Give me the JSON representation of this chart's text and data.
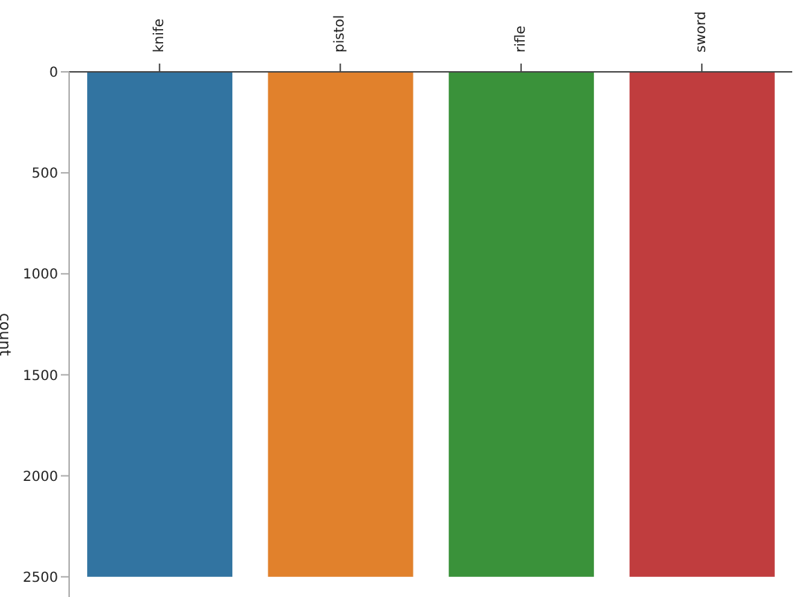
{
  "chart_data": {
    "type": "bar",
    "categories": [
      "knife",
      "pistol",
      "rifle",
      "sword"
    ],
    "values": [
      2500,
      2500,
      2500,
      2500
    ],
    "colors": [
      "#3274a1",
      "#e1812c",
      "#3a923a",
      "#c03d3e"
    ],
    "ylabel": "count",
    "ylim": [
      2600,
      0
    ],
    "yticks": [
      0,
      500,
      1000,
      1500,
      2000,
      2500
    ],
    "grid": false,
    "legend": false
  }
}
